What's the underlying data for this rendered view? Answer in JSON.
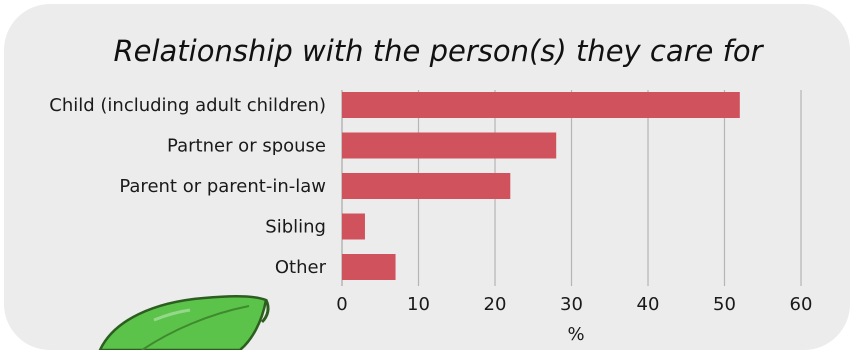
{
  "chart_data": {
    "type": "bar",
    "orientation": "horizontal",
    "title": "Relationship with the person(s) they care for",
    "categories": [
      "Child (including adult children)",
      "Partner or spouse",
      "Parent or parent-in-law",
      "Sibling",
      "Other"
    ],
    "values": [
      52,
      28,
      22,
      3,
      7
    ],
    "xlabel": "%",
    "ylabel": "",
    "xlim": [
      0,
      60
    ],
    "xticks": [
      "0",
      "10",
      "20",
      "30",
      "40",
      "50",
      "60"
    ],
    "grid": "vertical",
    "legend": "none",
    "bar_color": "#d0525c",
    "grid_color": "#b5b5b5"
  },
  "decoration": {
    "leaf_icon": "leaf-icon",
    "leaf_color": "#5cc34a"
  }
}
